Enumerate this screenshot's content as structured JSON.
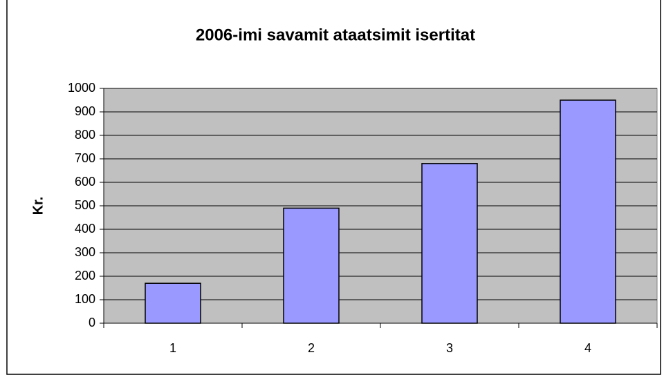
{
  "chart_data": {
    "type": "bar",
    "title": "2006-imi savamit ataatsimit isertitat",
    "y_label": "Kr.",
    "categories": [
      "1",
      "2",
      "3",
      "4"
    ],
    "values": [
      170,
      490,
      680,
      950
    ],
    "color": "#9999ff",
    "ylim": [
      0,
      1000
    ],
    "yticks": [
      0,
      100,
      200,
      300,
      400,
      500,
      600,
      700,
      800,
      900,
      1000
    ],
    "grid": true
  }
}
